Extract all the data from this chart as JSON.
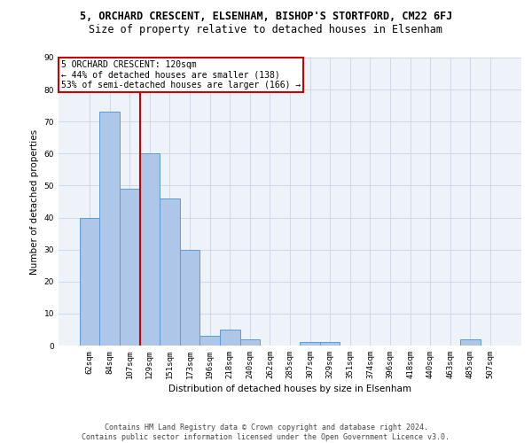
{
  "title_line1": "5, ORCHARD CRESCENT, ELSENHAM, BISHOP'S STORTFORD, CM22 6FJ",
  "title_line2": "Size of property relative to detached houses in Elsenham",
  "xlabel": "Distribution of detached houses by size in Elsenham",
  "ylabel": "Number of detached properties",
  "bar_labels": [
    "62sqm",
    "84sqm",
    "107sqm",
    "129sqm",
    "151sqm",
    "173sqm",
    "196sqm",
    "218sqm",
    "240sqm",
    "262sqm",
    "285sqm",
    "307sqm",
    "329sqm",
    "351sqm",
    "374sqm",
    "396sqm",
    "418sqm",
    "440sqm",
    "463sqm",
    "485sqm",
    "507sqm"
  ],
  "bar_values": [
    40,
    73,
    49,
    60,
    46,
    30,
    3,
    5,
    2,
    0,
    0,
    1,
    1,
    0,
    0,
    0,
    0,
    0,
    0,
    2,
    0
  ],
  "bar_color": "#aec6e8",
  "bar_edge_color": "#5b9bd5",
  "vline_color": "#cc0000",
  "annotation_text": "5 ORCHARD CRESCENT: 120sqm\n← 44% of detached houses are smaller (138)\n53% of semi-detached houses are larger (166) →",
  "annotation_box_color": "#ffffff",
  "annotation_box_edge": "#cc0000",
  "ylim": [
    0,
    90
  ],
  "yticks": [
    0,
    10,
    20,
    30,
    40,
    50,
    60,
    70,
    80,
    90
  ],
  "grid_color": "#d0d8e8",
  "background_color": "#eef2f9",
  "footer_text": "Contains HM Land Registry data © Crown copyright and database right 2024.\nContains public sector information licensed under the Open Government Licence v3.0.",
  "title_fontsize": 8.5,
  "subtitle_fontsize": 8.5,
  "axis_label_fontsize": 7.5,
  "tick_fontsize": 6.5,
  "annotation_fontsize": 7,
  "footer_fontsize": 6
}
